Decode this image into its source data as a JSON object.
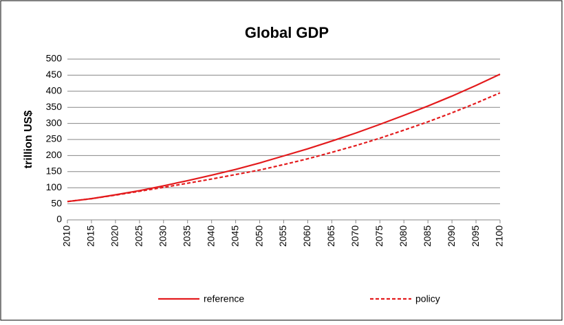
{
  "chart_data": {
    "type": "line",
    "title": "Global GDP",
    "y_label": "trillion US$",
    "x": [
      2010,
      2015,
      2020,
      2025,
      2030,
      2035,
      2040,
      2045,
      2050,
      2055,
      2060,
      2065,
      2070,
      2075,
      2080,
      2085,
      2090,
      2095,
      2100
    ],
    "xlim": [
      2010,
      2100
    ],
    "xticks": [
      2010,
      2015,
      2020,
      2025,
      2030,
      2035,
      2040,
      2045,
      2050,
      2055,
      2060,
      2065,
      2070,
      2075,
      2080,
      2085,
      2090,
      2095,
      2100
    ],
    "ylim": [
      0,
      500
    ],
    "yticks": [
      0,
      50,
      100,
      150,
      200,
      250,
      300,
      350,
      400,
      450,
      500
    ],
    "grid": true,
    "series": [
      {
        "name": "reference",
        "color": "#e31a1c",
        "dash": false,
        "values": [
          57,
          66,
          78,
          91,
          106,
          122,
          139,
          157,
          177,
          199,
          221,
          245,
          270,
          297,
          325,
          354,
          385,
          418,
          453
        ]
      },
      {
        "name": "policy",
        "color": "#e31a1c",
        "dash": true,
        "values": [
          57,
          66,
          77,
          89,
          101,
          114,
          127,
          141,
          155,
          172,
          190,
          210,
          231,
          254,
          279,
          305,
          333,
          363,
          395
        ]
      }
    ]
  }
}
